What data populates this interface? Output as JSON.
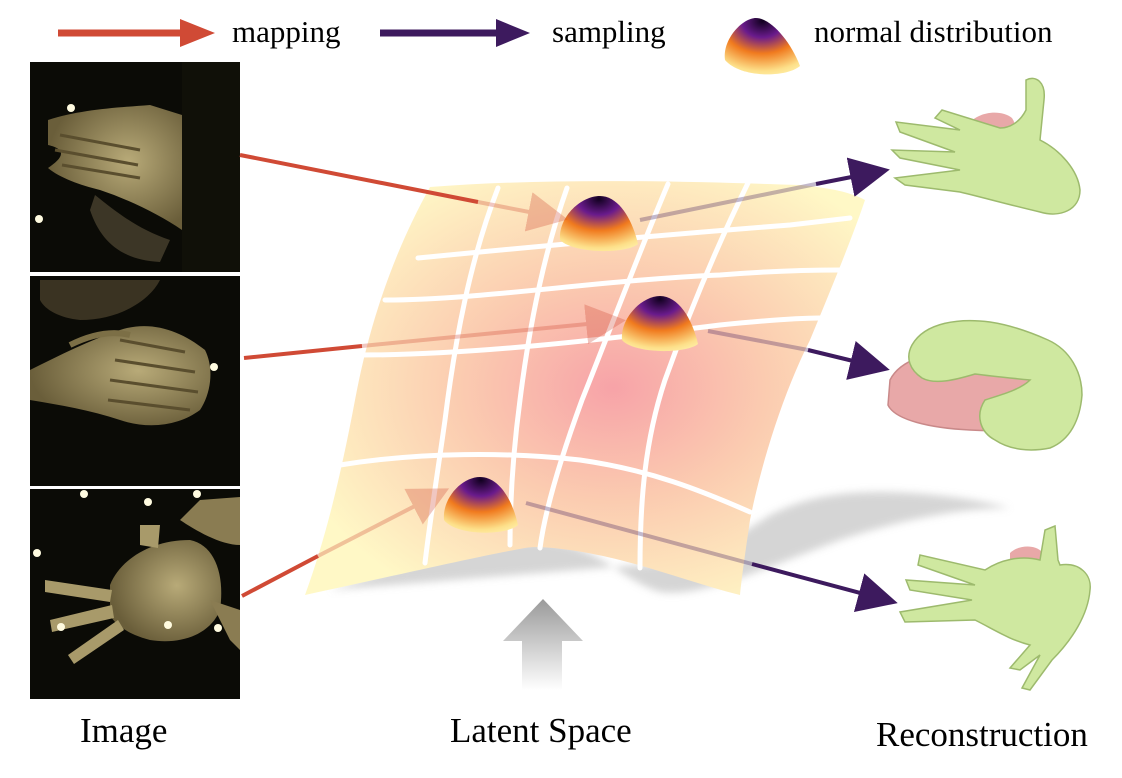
{
  "legend": {
    "mapping": {
      "label": "mapping",
      "color": "#d04a35"
    },
    "sampling": {
      "label": "sampling",
      "color": "#3d1a5e"
    },
    "distribution": {
      "label": "normal distribution"
    }
  },
  "captions": {
    "image": "Image",
    "latent": "Latent Space",
    "reconstruction": "Reconstruction"
  },
  "colors": {
    "surface_outer": "#fff8c6",
    "surface_center": "#f7a3a8",
    "grid_lines": "#ffffff",
    "shadow": "#c8c8c8",
    "photo_background": "#0b0b06",
    "skin": "#a89a6a",
    "mesh_green": "#cfe8a0",
    "mesh_pink": "#e8a8a8",
    "blob_dark": "#10001e",
    "blob_purple": "#6a1b8c",
    "blob_orange": "#f07a1e",
    "blob_yellow": "#fde08a"
  },
  "panels": [
    {
      "name": "image-panel-hands-overlapping",
      "description_icon": "hand-photo-icon"
    },
    {
      "name": "image-panel-hands-clasped",
      "description_icon": "hand-photo-icon"
    },
    {
      "name": "image-panel-hand-spread",
      "description_icon": "hand-photo-icon"
    }
  ],
  "reconstructions": [
    {
      "name": "reconstruction-hands-overlapping",
      "icon": "hand-mesh-icon"
    },
    {
      "name": "reconstruction-hands-clasped",
      "icon": "hand-mesh-icon"
    },
    {
      "name": "reconstruction-hand-spread",
      "icon": "hand-mesh-icon"
    }
  ]
}
